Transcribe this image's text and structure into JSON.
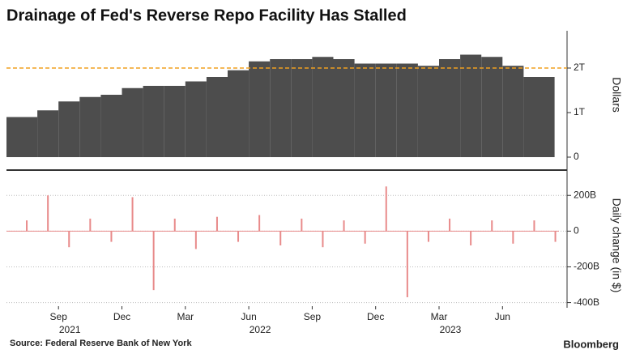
{
  "chart_data": [
    {
      "type": "bar",
      "title": "Drainage of Fed's Reverse Repo Facility Has Stalled",
      "y_label": "Dollars",
      "x": [
        "2021-07",
        "2021-08",
        "2021-09",
        "2021-10",
        "2021-11",
        "2021-12",
        "2022-01",
        "2022-02",
        "2022-03",
        "2022-04",
        "2022-05",
        "2022-06",
        "2022-07",
        "2022-08",
        "2022-09",
        "2022-10",
        "2022-11",
        "2022-12",
        "2023-01",
        "2023-02",
        "2023-03",
        "2023-04",
        "2023-05",
        "2023-06",
        "2023-07",
        "2023-08"
      ],
      "values": [
        0.9,
        1.05,
        1.25,
        1.35,
        1.4,
        1.55,
        1.6,
        1.6,
        1.7,
        1.8,
        1.95,
        2.15,
        2.2,
        2.2,
        2.25,
        2.2,
        2.1,
        2.1,
        2.1,
        2.05,
        2.2,
        2.3,
        2.25,
        2.05,
        1.8,
        1.8
      ],
      "color": "#4d4d4d",
      "reference_line": 2,
      "reference_color": "#f0a020",
      "ylim": [
        0,
        2.8
      ],
      "yticks": [
        0,
        {
          "value": 1,
          "label": "1T"
        },
        {
          "value": 2,
          "label": "2T"
        }
      ]
    },
    {
      "type": "bar",
      "y_label": "Daily change (in $)",
      "x": [
        "2021-07",
        "2021-08",
        "2021-09",
        "2021-10",
        "2021-11",
        "2021-12",
        "2022-01",
        "2022-02",
        "2022-03",
        "2022-04",
        "2022-05",
        "2022-06",
        "2022-07",
        "2022-08",
        "2022-09",
        "2022-10",
        "2022-11",
        "2022-12",
        "2023-01",
        "2023-02",
        "2023-03",
        "2023-04",
        "2023-05",
        "2023-06",
        "2023-07",
        "2023-08"
      ],
      "values": [
        60,
        200,
        -90,
        70,
        -60,
        190,
        -330,
        70,
        -100,
        80,
        -60,
        90,
        -80,
        70,
        -90,
        60,
        -70,
        250,
        -370,
        -60,
        70,
        -80,
        60,
        -70,
        60,
        -60
      ],
      "color": "#e88a8a",
      "grid": true,
      "ylim": [
        -420,
        260
      ],
      "yticks": [
        {
          "value": 200,
          "label": "200B"
        },
        0,
        {
          "value": -200,
          "label": "-200B"
        },
        {
          "value": -400,
          "label": "-400B"
        }
      ],
      "xticks": [
        {
          "value": "2021-09",
          "label": "Sep"
        },
        {
          "value": "2021-12",
          "label": "Dec"
        },
        {
          "value": "2022-03",
          "label": "Mar"
        },
        {
          "value": "2022-06",
          "label": "Jun"
        },
        {
          "value": "2022-09",
          "label": "Sep"
        },
        {
          "value": "2022-12",
          "label": "Dec"
        },
        {
          "value": "2023-03",
          "label": "Mar"
        },
        {
          "value": "2023-06",
          "label": "Jun"
        }
      ],
      "year_labels": [
        {
          "value": "2021-09",
          "label": "2021"
        },
        {
          "value": "2022-06",
          "label": "2022"
        },
        {
          "value": "2023-03",
          "label": "2023"
        }
      ]
    }
  ],
  "source": "Source: Federal Reserve Bank of New York",
  "brand": "Bloomberg"
}
